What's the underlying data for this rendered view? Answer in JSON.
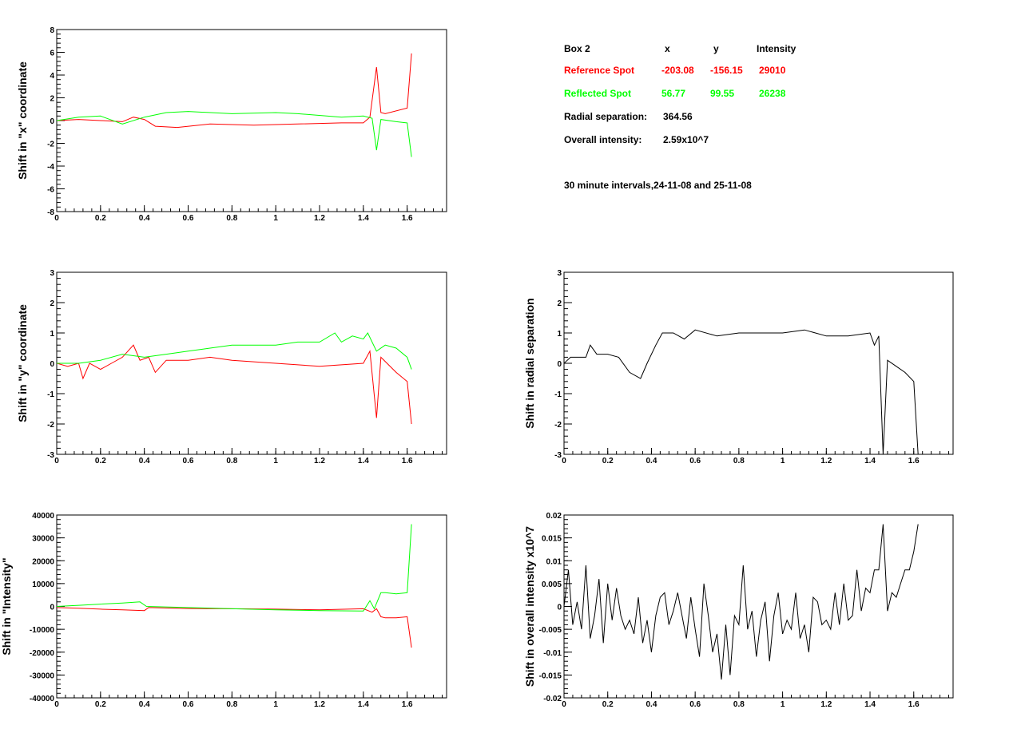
{
  "info": {
    "box_label": "Box 2",
    "col_x": "x",
    "col_y": "y",
    "col_intensity": "Intensity",
    "reference": {
      "label": "Reference Spot",
      "x": "-203.08",
      "y": "-156.15",
      "intensity": "29010",
      "color": "#ff0000"
    },
    "reflected": {
      "label": "Reflected Spot",
      "x": "56.77",
      "y": "99.55",
      "intensity": "26238",
      "color": "#00ff00"
    },
    "radial_label": "Radial separation:",
    "radial_value": "364.56",
    "overall_label": "Overall intensity:",
    "overall_value": "2.59x10^7",
    "intervals_note": "30 minute intervals,24-11-08 and 25-11-08"
  },
  "chart_data": [
    {
      "type": "line",
      "ylabel": "Shift in \"x\" coordinate",
      "xlim": [
        0,
        1.78
      ],
      "ylim": [
        -8,
        8
      ],
      "xticks": [
        0,
        0.2,
        0.4,
        0.6,
        0.8,
        1,
        1.2,
        1.4,
        1.6
      ],
      "xtick_labels": [
        "0",
        "0.2",
        "0.4",
        "0.6",
        "0.8",
        "1",
        "1.2",
        "1.4",
        "1.6"
      ],
      "yticks": [
        -8,
        -6,
        -4,
        -2,
        0,
        2,
        4,
        6,
        8
      ],
      "ytick_labels": [
        "-8",
        "-6",
        "-4",
        "-2",
        "0",
        "2",
        "4",
        "6",
        "8"
      ],
      "series": [
        {
          "color": "#ff0000",
          "x": [
            0,
            0.1,
            0.2,
            0.3,
            0.35,
            0.4,
            0.45,
            0.55,
            0.7,
            0.9,
            1.1,
            1.3,
            1.4,
            1.43,
            1.46,
            1.48,
            1.5,
            1.6,
            1.62
          ],
          "y": [
            0,
            0.1,
            0,
            -0.1,
            0.3,
            0.1,
            -0.5,
            -0.6,
            -0.3,
            -0.4,
            -0.3,
            -0.2,
            -0.2,
            0.3,
            4.7,
            0.7,
            0.6,
            1.1,
            5.9
          ]
        },
        {
          "color": "#00ff00",
          "x": [
            0,
            0.1,
            0.2,
            0.3,
            0.4,
            0.5,
            0.6,
            0.8,
            1.0,
            1.1,
            1.3,
            1.4,
            1.44,
            1.46,
            1.48,
            1.55,
            1.6,
            1.62
          ],
          "y": [
            0,
            0.3,
            0.4,
            -0.3,
            0.3,
            0.7,
            0.8,
            0.6,
            0.7,
            0.6,
            0.3,
            0.4,
            0.2,
            -2.6,
            0.1,
            -0.1,
            -0.2,
            -3.2
          ]
        }
      ]
    },
    {
      "type": "line",
      "ylabel": "Shift in \"y\" coordinate",
      "xlim": [
        0,
        1.78
      ],
      "ylim": [
        -3,
        3
      ],
      "xticks": [
        0,
        0.2,
        0.4,
        0.6,
        0.8,
        1,
        1.2,
        1.4,
        1.6
      ],
      "xtick_labels": [
        "0",
        "0.2",
        "0.4",
        "0.6",
        "0.8",
        "1",
        "1.2",
        "1.4",
        "1.6"
      ],
      "yticks": [
        -3,
        -2,
        -1,
        0,
        1,
        2,
        3
      ],
      "ytick_labels": [
        "-3",
        "-2",
        "-1",
        "0",
        "1",
        "2",
        "3"
      ],
      "series": [
        {
          "color": "#ff0000",
          "x": [
            0,
            0.05,
            0.1,
            0.12,
            0.15,
            0.2,
            0.25,
            0.3,
            0.35,
            0.38,
            0.42,
            0.45,
            0.5,
            0.6,
            0.7,
            0.8,
            1.0,
            1.2,
            1.4,
            1.43,
            1.46,
            1.48,
            1.55,
            1.6,
            1.62
          ],
          "y": [
            0,
            -0.1,
            0,
            -0.5,
            0,
            -0.2,
            0,
            0.2,
            0.6,
            0.1,
            0.2,
            -0.3,
            0.1,
            0.1,
            0.2,
            0.1,
            0,
            -0.1,
            0,
            0.4,
            -1.8,
            0.2,
            -0.3,
            -0.6,
            -2.0
          ]
        },
        {
          "color": "#00ff00",
          "x": [
            0,
            0.1,
            0.2,
            0.3,
            0.4,
            0.5,
            0.6,
            0.7,
            0.8,
            0.9,
            1.0,
            1.1,
            1.2,
            1.27,
            1.3,
            1.35,
            1.4,
            1.42,
            1.46,
            1.5,
            1.55,
            1.6,
            1.62
          ],
          "y": [
            0,
            0,
            0.1,
            0.3,
            0.2,
            0.3,
            0.4,
            0.5,
            0.6,
            0.6,
            0.6,
            0.7,
            0.7,
            1.0,
            0.7,
            0.9,
            0.8,
            1.0,
            0.4,
            0.6,
            0.5,
            0.2,
            -0.2
          ]
        }
      ]
    },
    {
      "type": "line",
      "ylabel": "Shift in radial separation",
      "xlim": [
        0,
        1.78
      ],
      "ylim": [
        -3,
        3
      ],
      "xticks": [
        0,
        0.2,
        0.4,
        0.6,
        0.8,
        1,
        1.2,
        1.4,
        1.6
      ],
      "xtick_labels": [
        "0",
        "0.2",
        "0.4",
        "0.6",
        "0.8",
        "1",
        "1.2",
        "1.4",
        "1.6"
      ],
      "yticks": [
        -3,
        -2,
        -1,
        0,
        1,
        2,
        3
      ],
      "ytick_labels": [
        "-3",
        "-2",
        "-1",
        "0",
        "1",
        "2",
        "3"
      ],
      "series": [
        {
          "color": "#000000",
          "x": [
            0,
            0.03,
            0.06,
            0.1,
            0.12,
            0.15,
            0.2,
            0.25,
            0.3,
            0.35,
            0.38,
            0.42,
            0.45,
            0.5,
            0.55,
            0.6,
            0.7,
            0.8,
            0.9,
            1.0,
            1.1,
            1.2,
            1.3,
            1.4,
            1.42,
            1.44,
            1.46,
            1.48,
            1.52,
            1.56,
            1.6,
            1.62
          ],
          "y": [
            0,
            0.2,
            0.2,
            0.2,
            0.6,
            0.3,
            0.3,
            0.2,
            -0.3,
            -0.5,
            0,
            0.6,
            1.0,
            1.0,
            0.8,
            1.1,
            0.9,
            1.0,
            1.0,
            1.0,
            1.1,
            0.9,
            0.9,
            1.0,
            0.6,
            0.9,
            -3.0,
            0.1,
            -0.1,
            -0.3,
            -0.6,
            -3.0
          ]
        }
      ]
    },
    {
      "type": "line",
      "ylabel": "Shift in \"Intensity\"",
      "xlim": [
        0,
        1.78
      ],
      "ylim": [
        -40000,
        40000
      ],
      "xticks": [
        0,
        0.2,
        0.4,
        0.6,
        0.8,
        1,
        1.2,
        1.4,
        1.6
      ],
      "xtick_labels": [
        "0",
        "0.2",
        "0.4",
        "0.6",
        "0.8",
        "1",
        "1.2",
        "1.4",
        "1.6"
      ],
      "yticks": [
        -40000,
        -30000,
        -20000,
        -10000,
        0,
        10000,
        20000,
        30000,
        40000
      ],
      "ytick_labels": [
        "-40000",
        "-30000",
        "-20000",
        "-10000",
        "0",
        "10000",
        "20000",
        "30000",
        "40000"
      ],
      "series": [
        {
          "color": "#ff0000",
          "x": [
            0,
            0.1,
            0.2,
            0.3,
            0.4,
            0.42,
            0.6,
            0.8,
            1.0,
            1.2,
            1.4,
            1.44,
            1.46,
            1.48,
            1.5,
            1.55,
            1.6,
            1.62
          ],
          "y": [
            -500,
            -800,
            -1200,
            -1500,
            -1800,
            -500,
            -900,
            -1000,
            -1200,
            -1500,
            -1000,
            -2500,
            -1000,
            -4500,
            -5000,
            -5000,
            -4500,
            -18000
          ]
        },
        {
          "color": "#00ff00",
          "x": [
            0,
            0.1,
            0.2,
            0.3,
            0.38,
            0.41,
            0.6,
            0.8,
            1.0,
            1.2,
            1.4,
            1.43,
            1.45,
            1.48,
            1.5,
            1.55,
            1.6,
            1.62
          ],
          "y": [
            0,
            500,
            1000,
            1500,
            2000,
            0,
            -500,
            -1000,
            -1500,
            -1800,
            -2000,
            2500,
            -1000,
            6000,
            6000,
            5500,
            6000,
            36000
          ]
        }
      ]
    },
    {
      "type": "line",
      "ylabel": "Shift in overall intensity x10^7",
      "xlim": [
        0,
        1.78
      ],
      "ylim": [
        -0.02,
        0.02
      ],
      "xticks": [
        0,
        0.2,
        0.4,
        0.6,
        0.8,
        1,
        1.2,
        1.4,
        1.6
      ],
      "xtick_labels": [
        "0",
        "0.2",
        "0.4",
        "0.6",
        "0.8",
        "1",
        "1.2",
        "1.4",
        "1.6"
      ],
      "yticks": [
        -0.02,
        -0.015,
        -0.01,
        -0.005,
        0,
        0.005,
        0.01,
        0.015,
        0.02
      ],
      "ytick_labels": [
        "-0.02",
        "-0.015",
        "-0.01",
        "-0.005",
        "0",
        "0.005",
        "0.01",
        "0.015",
        "0.02"
      ],
      "series": [
        {
          "color": "#000000",
          "x": [
            0,
            0.02,
            0.04,
            0.06,
            0.08,
            0.1,
            0.12,
            0.14,
            0.16,
            0.18,
            0.2,
            0.22,
            0.24,
            0.26,
            0.28,
            0.3,
            0.32,
            0.34,
            0.36,
            0.38,
            0.4,
            0.42,
            0.44,
            0.46,
            0.48,
            0.5,
            0.52,
            0.54,
            0.56,
            0.58,
            0.6,
            0.62,
            0.64,
            0.66,
            0.68,
            0.7,
            0.72,
            0.74,
            0.76,
            0.78,
            0.8,
            0.82,
            0.84,
            0.86,
            0.88,
            0.9,
            0.92,
            0.94,
            0.96,
            0.98,
            1.0,
            1.02,
            1.04,
            1.06,
            1.08,
            1.1,
            1.12,
            1.14,
            1.16,
            1.18,
            1.2,
            1.22,
            1.24,
            1.26,
            1.28,
            1.3,
            1.32,
            1.34,
            1.36,
            1.38,
            1.4,
            1.42,
            1.44,
            1.46,
            1.48,
            1.5,
            1.52,
            1.54,
            1.56,
            1.58,
            1.6,
            1.62
          ],
          "y": [
            0,
            0.008,
            -0.004,
            0.001,
            -0.005,
            0.009,
            -0.007,
            -0.002,
            0.006,
            -0.008,
            0.005,
            -0.003,
            0.004,
            -0.002,
            -0.005,
            -0.003,
            -0.006,
            0.002,
            -0.008,
            -0.003,
            -0.01,
            -0.002,
            0.002,
            0.003,
            -0.004,
            -0.001,
            0.003,
            -0.002,
            -0.007,
            0.002,
            -0.005,
            -0.011,
            0.005,
            -0.002,
            -0.01,
            -0.006,
            -0.016,
            -0.004,
            -0.015,
            -0.002,
            -0.004,
            0.009,
            -0.005,
            -0.001,
            -0.011,
            -0.003,
            0.001,
            -0.012,
            -0.002,
            0.003,
            -0.006,
            -0.003,
            -0.005,
            0.003,
            -0.007,
            -0.004,
            -0.01,
            0.002,
            0.001,
            -0.004,
            -0.003,
            -0.005,
            0.003,
            -0.004,
            0.005,
            -0.003,
            -0.002,
            0.008,
            -0.001,
            0.004,
            0.003,
            0.008,
            0.008,
            0.018,
            -0.001,
            0.003,
            0.002,
            0.005,
            0.008,
            0.008,
            0.012,
            0.018
          ]
        }
      ]
    }
  ]
}
